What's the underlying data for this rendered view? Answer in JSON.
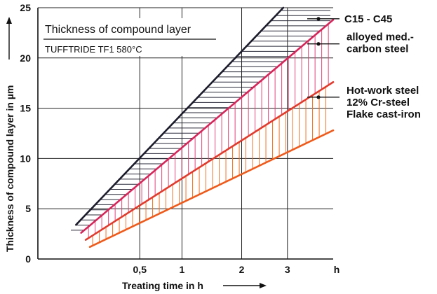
{
  "chart_data": {
    "type": "line",
    "title": "Thickness of compound layer",
    "subtitle": "TUFFTRIDE TF1 580°C",
    "xlabel": "Treating time in h",
    "ylabel": "Thickness of compound layer in µm",
    "x_scale": "sqrt",
    "xlim": [
      0,
      4.2
    ],
    "ylim": [
      0,
      25
    ],
    "x_ticks": [
      {
        "value": 0.5,
        "label": "0,5"
      },
      {
        "value": 1,
        "label": "1"
      },
      {
        "value": 2,
        "label": "2"
      },
      {
        "value": 3,
        "label": "3"
      }
    ],
    "x_unit_label": "h",
    "y_ticks": [
      0,
      5,
      10,
      15,
      20,
      25
    ],
    "grid": true,
    "colors": {
      "black": "#1c1c2c",
      "magenta": "#d8245a",
      "red": "#e23a2c",
      "orange": "#ef5a1a",
      "hatch_black": "#2a2a3a",
      "hatch_pink": "#e0407a",
      "hatch_orange": "#f07020"
    },
    "lines": [
      {
        "id": "black",
        "color": "#1c1c2c",
        "points": [
          [
            0.07,
            3.4
          ],
          [
            2.9,
            25
          ]
        ]
      },
      {
        "id": "magenta",
        "color": "#d8245a",
        "points": [
          [
            0.09,
            2.6
          ],
          [
            4.2,
            23.8
          ]
        ]
      },
      {
        "id": "red",
        "color": "#e23a2c",
        "points": [
          [
            0.11,
            1.9
          ],
          [
            4.2,
            17.6
          ]
        ]
      },
      {
        "id": "orange",
        "color": "#ef5a1a",
        "points": [
          [
            0.13,
            1.2
          ],
          [
            4.2,
            12.8
          ]
        ]
      }
    ],
    "bands": [
      {
        "name": "C15 - C45",
        "upper": "black",
        "lower": "magenta",
        "hatch": "horizontal",
        "color": "#2a2a3a"
      },
      {
        "name": "alloyed med.-carbon steel",
        "upper": "magenta",
        "lower": "red",
        "hatch": "vertical",
        "color": "#e0407a"
      },
      {
        "name": "Hot-work steel 12% Cr-steel Flake cast-iron",
        "upper": "red",
        "lower": "orange",
        "hatch": "vertical",
        "color": "#f07020"
      }
    ],
    "legend": [
      {
        "lines": [
          "C15 - C45"
        ],
        "marker_y": 23.9
      },
      {
        "lines": [
          "alloyed med.-",
          "carbon steel"
        ],
        "marker_y": 21.4
      },
      {
        "lines": [
          "Hot-work steel",
          "12% Cr-steel",
          "Flake cast-iron"
        ],
        "marker_y": 16.1
      }
    ]
  }
}
